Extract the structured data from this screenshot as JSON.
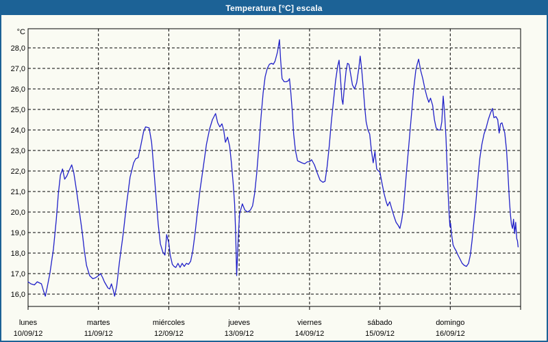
{
  "window": {
    "title": "Temperatura [°C] escala"
  },
  "colors": {
    "titlebar_bg": "#1c6296",
    "window_border": "#1c6296",
    "content_bg": "#fafbf3",
    "grid": "#000000",
    "axis": "#000000",
    "line": "#2020c8",
    "title_text": "#ffffff"
  },
  "chart_data": {
    "type": "line",
    "title": "Temperatura [°C] escala",
    "y_unit_label": "°C",
    "yticks": [
      28,
      27,
      26,
      25,
      24,
      23,
      22,
      21,
      20,
      19,
      18,
      17,
      16
    ],
    "ytick_labels": [
      "28,0",
      "27,0",
      "26,0",
      "25,0",
      "24,0",
      "23,0",
      "22,0",
      "21,0",
      "20,0",
      "19,0",
      "18,0",
      "17,0",
      "16,0"
    ],
    "ylim": [
      15.4,
      28.9
    ],
    "grid": "dashed",
    "legend_position": "none",
    "x_days": [
      {
        "name": "lunes",
        "date": "10/09/12"
      },
      {
        "name": "martes",
        "date": "11/09/12"
      },
      {
        "name": "miércoles",
        "date": "12/09/12"
      },
      {
        "name": "jueves",
        "date": "13/09/12"
      },
      {
        "name": "viernes",
        "date": "14/09/12"
      },
      {
        "name": "sábado",
        "date": "15/09/12"
      },
      {
        "name": "domingo",
        "date": "16/09/12"
      }
    ],
    "xlim_days": [
      0,
      7
    ],
    "series": [
      {
        "name": "Temperatura",
        "color": "#2020c8",
        "x_unit": "days since lunes 10/09/12 00:00",
        "points": [
          [
            0,
            16.6
          ],
          [
            0.04,
            16.5
          ],
          [
            0.09,
            16.45
          ],
          [
            0.13,
            16.6
          ],
          [
            0.16,
            16.55
          ],
          [
            0.19,
            16.5
          ],
          [
            0.22,
            16.15
          ],
          [
            0.245,
            15.9
          ],
          [
            0.27,
            16.3
          ],
          [
            0.31,
            17
          ],
          [
            0.36,
            18.2
          ],
          [
            0.4,
            19.6
          ],
          [
            0.43,
            20.9
          ],
          [
            0.46,
            21.8
          ],
          [
            0.49,
            22.1
          ],
          [
            0.52,
            21.6
          ],
          [
            0.55,
            21.75
          ],
          [
            0.58,
            22
          ],
          [
            0.62,
            22.3
          ],
          [
            0.65,
            21.9
          ],
          [
            0.69,
            21
          ],
          [
            0.73,
            20
          ],
          [
            0.77,
            19
          ],
          [
            0.8,
            18.1
          ],
          [
            0.83,
            17.4
          ],
          [
            0.875,
            16.9
          ],
          [
            0.92,
            16.75
          ],
          [
            0.96,
            16.8
          ],
          [
            1,
            16.9
          ],
          [
            1.03,
            17
          ],
          [
            1.06,
            16.8
          ],
          [
            1.085,
            16.6
          ],
          [
            1.11,
            16.45
          ],
          [
            1.135,
            16.3
          ],
          [
            1.16,
            16.25
          ],
          [
            1.185,
            16.5
          ],
          [
            1.21,
            16.2
          ],
          [
            1.23,
            15.9
          ],
          [
            1.26,
            16.4
          ],
          [
            1.3,
            17.6
          ],
          [
            1.35,
            18.9
          ],
          [
            1.4,
            20.4
          ],
          [
            1.45,
            21.7
          ],
          [
            1.5,
            22.4
          ],
          [
            1.53,
            22.6
          ],
          [
            1.565,
            22.65
          ],
          [
            1.6,
            23.2
          ],
          [
            1.64,
            23.9
          ],
          [
            1.67,
            24.15
          ],
          [
            1.72,
            24.1
          ],
          [
            1.755,
            23.4
          ],
          [
            1.785,
            22.2
          ],
          [
            1.815,
            20.9
          ],
          [
            1.85,
            19.4
          ],
          [
            1.88,
            18.45
          ],
          [
            1.915,
            18.05
          ],
          [
            1.945,
            17.9
          ],
          [
            1.97,
            18.9
          ],
          [
            2,
            18.5
          ],
          [
            2.02,
            17.9
          ],
          [
            2.05,
            17.45
          ],
          [
            2.075,
            17.35
          ],
          [
            2.1,
            17.3
          ],
          [
            2.13,
            17.5
          ],
          [
            2.16,
            17.3
          ],
          [
            2.19,
            17.5
          ],
          [
            2.22,
            17.35
          ],
          [
            2.25,
            17.5
          ],
          [
            2.28,
            17.45
          ],
          [
            2.31,
            17.6
          ],
          [
            2.34,
            18.1
          ],
          [
            2.375,
            19
          ],
          [
            2.41,
            20.1
          ],
          [
            2.445,
            21.1
          ],
          [
            2.49,
            22.2
          ],
          [
            2.535,
            23.3
          ],
          [
            2.58,
            24.05
          ],
          [
            2.62,
            24.5
          ],
          [
            2.665,
            24.8
          ],
          [
            2.695,
            24.35
          ],
          [
            2.725,
            24.15
          ],
          [
            2.755,
            24.3
          ],
          [
            2.78,
            24
          ],
          [
            2.805,
            23.4
          ],
          [
            2.835,
            23.65
          ],
          [
            2.865,
            23.2
          ],
          [
            2.89,
            22.4
          ],
          [
            2.915,
            21.4
          ],
          [
            2.935,
            20.4
          ],
          [
            2.95,
            19
          ],
          [
            2.965,
            16.9
          ],
          [
            2.985,
            18.6
          ],
          [
            3.005,
            19.9
          ],
          [
            3.045,
            20.4
          ],
          [
            3.08,
            20.1
          ],
          [
            3.12,
            20
          ],
          [
            3.16,
            20.1
          ],
          [
            3.19,
            20.3
          ],
          [
            3.22,
            20.9
          ],
          [
            3.25,
            21.9
          ],
          [
            3.28,
            23.2
          ],
          [
            3.31,
            24.6
          ],
          [
            3.34,
            25.8
          ],
          [
            3.37,
            26.6
          ],
          [
            3.4,
            27
          ],
          [
            3.43,
            27.2
          ],
          [
            3.46,
            27.25
          ],
          [
            3.485,
            27.2
          ],
          [
            3.51,
            27.35
          ],
          [
            3.545,
            27.8
          ],
          [
            3.573,
            28.4
          ],
          [
            3.59,
            27.4
          ],
          [
            3.61,
            26.5
          ],
          [
            3.64,
            26.35
          ],
          [
            3.67,
            26.35
          ],
          [
            3.7,
            26.4
          ],
          [
            3.715,
            26.5
          ],
          [
            3.735,
            25.8
          ],
          [
            3.755,
            24.9
          ],
          [
            3.775,
            23.8
          ],
          [
            3.8,
            23
          ],
          [
            3.83,
            22.5
          ],
          [
            3.86,
            22.45
          ],
          [
            3.89,
            22.4
          ],
          [
            3.93,
            22.35
          ],
          [
            3.97,
            22.45
          ],
          [
            4,
            22.45
          ],
          [
            4.03,
            22.55
          ],
          [
            4.07,
            22.3
          ],
          [
            4.11,
            21.9
          ],
          [
            4.15,
            21.55
          ],
          [
            4.19,
            21.45
          ],
          [
            4.22,
            21.5
          ],
          [
            4.25,
            22.2
          ],
          [
            4.28,
            23.2
          ],
          [
            4.31,
            24.4
          ],
          [
            4.34,
            25.4
          ],
          [
            4.37,
            26.4
          ],
          [
            4.4,
            27.1
          ],
          [
            4.42,
            27.4
          ],
          [
            4.44,
            26.5
          ],
          [
            4.46,
            25.5
          ],
          [
            4.475,
            25.25
          ],
          [
            4.49,
            25.9
          ],
          [
            4.52,
            26.9
          ],
          [
            4.54,
            27.25
          ],
          [
            4.56,
            27.2
          ],
          [
            4.59,
            26.6
          ],
          [
            4.61,
            26.2
          ],
          [
            4.64,
            26
          ],
          [
            4.67,
            26.3
          ],
          [
            4.7,
            27
          ],
          [
            4.72,
            27.6
          ],
          [
            4.74,
            27
          ],
          [
            4.76,
            26.2
          ],
          [
            4.785,
            25.1
          ],
          [
            4.805,
            24.4
          ],
          [
            4.83,
            24
          ],
          [
            4.855,
            23.8
          ],
          [
            4.88,
            23
          ],
          [
            4.905,
            22.4
          ],
          [
            4.93,
            22.95
          ],
          [
            4.955,
            22.1
          ],
          [
            4.98,
            22
          ],
          [
            5,
            21.95
          ],
          [
            5.03,
            21.4
          ],
          [
            5.06,
            20.9
          ],
          [
            5.09,
            20.5
          ],
          [
            5.11,
            20.3
          ],
          [
            5.14,
            20.5
          ],
          [
            5.17,
            20.15
          ],
          [
            5.2,
            19.8
          ],
          [
            5.23,
            19.5
          ],
          [
            5.26,
            19.35
          ],
          [
            5.285,
            19.2
          ],
          [
            5.31,
            19.6
          ],
          [
            5.335,
            20.2
          ],
          [
            5.36,
            21.2
          ],
          [
            5.39,
            22.4
          ],
          [
            5.42,
            23.6
          ],
          [
            5.45,
            24.8
          ],
          [
            5.48,
            26
          ],
          [
            5.51,
            26.9
          ],
          [
            5.53,
            27.2
          ],
          [
            5.55,
            27.45
          ],
          [
            5.58,
            26.9
          ],
          [
            5.61,
            26.5
          ],
          [
            5.64,
            26
          ],
          [
            5.67,
            25.6
          ],
          [
            5.695,
            25.35
          ],
          [
            5.72,
            25.55
          ],
          [
            5.75,
            25.2
          ],
          [
            5.775,
            24.5
          ],
          [
            5.8,
            24.1
          ],
          [
            5.83,
            24
          ],
          [
            5.86,
            24
          ],
          [
            5.88,
            24.4
          ],
          [
            5.9,
            25.65
          ],
          [
            5.92,
            24.8
          ],
          [
            5.94,
            23.6
          ],
          [
            5.955,
            22.2
          ],
          [
            5.97,
            20.9
          ],
          [
            5.985,
            19.9
          ],
          [
            5.995,
            19.3
          ],
          [
            6.005,
            19.45
          ],
          [
            6.02,
            18.9
          ],
          [
            6.04,
            18.4
          ],
          [
            6.06,
            18.25
          ],
          [
            6.085,
            18.1
          ],
          [
            6.11,
            17.9
          ],
          [
            6.14,
            17.7
          ],
          [
            6.17,
            17.5
          ],
          [
            6.2,
            17.4
          ],
          [
            6.23,
            17.35
          ],
          [
            6.26,
            17.5
          ],
          [
            6.285,
            17.9
          ],
          [
            6.31,
            18.6
          ],
          [
            6.33,
            19.3
          ],
          [
            6.36,
            20.3
          ],
          [
            6.39,
            21.5
          ],
          [
            6.42,
            22.6
          ],
          [
            6.45,
            23.3
          ],
          [
            6.48,
            23.8
          ],
          [
            6.51,
            24.1
          ],
          [
            6.54,
            24.5
          ],
          [
            6.57,
            24.8
          ],
          [
            6.6,
            25.05
          ],
          [
            6.62,
            24.6
          ],
          [
            6.65,
            24.65
          ],
          [
            6.675,
            24.5
          ],
          [
            6.695,
            23.85
          ],
          [
            6.715,
            24.3
          ],
          [
            6.735,
            24.35
          ],
          [
            6.755,
            24.1
          ],
          [
            6.775,
            23.85
          ],
          [
            6.8,
            23
          ],
          [
            6.82,
            21.9
          ],
          [
            6.84,
            20.6
          ],
          [
            6.855,
            19.9
          ],
          [
            6.87,
            19.4
          ],
          [
            6.885,
            19.2
          ],
          [
            6.9,
            19.65
          ],
          [
            6.915,
            18.95
          ],
          [
            6.93,
            19.5
          ],
          [
            6.945,
            18.7
          ],
          [
            6.955,
            18.6
          ],
          [
            6.965,
            18.3
          ]
        ]
      }
    ]
  }
}
